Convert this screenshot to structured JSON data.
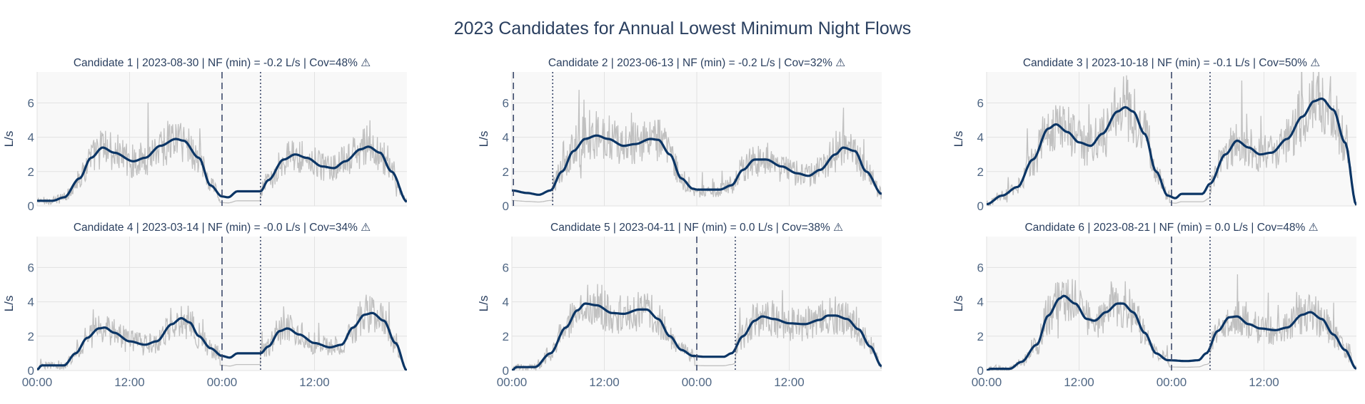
{
  "page": {
    "title": "2023 Candidates for Annual Lowest Minimum Night Flows"
  },
  "colors": {
    "plot_background": "#f8f8f8",
    "grid": "#e2e2e2",
    "raw_flow": "#c0c0c0",
    "smoothed_flow": "#0b3565",
    "markers": "#3c4a6b",
    "tick_text": "#506784",
    "title_text": "#2a3f5f"
  },
  "chart_data": [
    {
      "type": "line",
      "title": "Candidate 1 | 2023-08-30 | NF (min) = -0.2 L/s | Cov=48% ⚠",
      "ylabel": "L/s",
      "x_range_hours": [
        0,
        48
      ],
      "ylim": [
        0,
        7.8
      ],
      "x_ticks": [
        {
          "hour": 0,
          "label": "00:00"
        },
        {
          "hour": 12,
          "label": "12:00"
        },
        {
          "hour": 24,
          "label": "00:00"
        },
        {
          "hour": 36,
          "label": "12:00"
        }
      ],
      "y_ticks": [
        0,
        2,
        4,
        6
      ],
      "dashed_marker_hour": 24,
      "dotted_marker_hour": 29,
      "smoothed_points": [
        [
          0,
          0.3
        ],
        [
          2,
          0.3
        ],
        [
          3.5,
          0.5
        ],
        [
          5.5,
          1.6
        ],
        [
          7,
          2.8
        ],
        [
          8.5,
          3.4
        ],
        [
          10,
          3.1
        ],
        [
          12.5,
          2.6
        ],
        [
          14,
          2.8
        ],
        [
          16,
          3.5
        ],
        [
          18,
          3.9
        ],
        [
          19,
          3.8
        ],
        [
          21,
          2.8
        ],
        [
          22.5,
          1.2
        ],
        [
          24,
          0.55
        ],
        [
          24.8,
          0.5
        ],
        [
          26,
          0.85
        ],
        [
          29,
          0.85
        ],
        [
          30,
          1.5
        ],
        [
          32,
          2.7
        ],
        [
          33.5,
          3.0
        ],
        [
          35,
          2.8
        ],
        [
          37,
          2.3
        ],
        [
          38.5,
          2.2
        ],
        [
          40,
          2.6
        ],
        [
          42,
          3.3
        ],
        [
          43,
          3.45
        ],
        [
          44.5,
          3.1
        ],
        [
          46,
          2.0
        ],
        [
          48,
          0.25
        ]
      ]
    },
    {
      "type": "line",
      "title": "Candidate 2 | 2023-06-13 | NF (min) = -0.2 L/s | Cov=32% ⚠",
      "ylabel": "L/s",
      "x_range_hours": [
        0,
        48
      ],
      "ylim": [
        0,
        7.8
      ],
      "x_ticks": [
        {
          "hour": 0,
          "label": "00:00"
        },
        {
          "hour": 12,
          "label": "12:00"
        },
        {
          "hour": 24,
          "label": "00:00"
        },
        {
          "hour": 36,
          "label": "12:00"
        }
      ],
      "y_ticks": [
        0,
        2,
        4,
        6
      ],
      "dashed_marker_hour": 0.2,
      "dotted_marker_hour": 5.3,
      "smoothed_points": [
        [
          0,
          0.9
        ],
        [
          2,
          0.75
        ],
        [
          3.5,
          0.65
        ],
        [
          5,
          0.9
        ],
        [
          6.5,
          2.0
        ],
        [
          8,
          3.2
        ],
        [
          9.5,
          3.9
        ],
        [
          11,
          4.1
        ],
        [
          12.5,
          3.9
        ],
        [
          14.5,
          3.5
        ],
        [
          16,
          3.6
        ],
        [
          18,
          3.9
        ],
        [
          19,
          3.85
        ],
        [
          20.5,
          3.0
        ],
        [
          22,
          1.6
        ],
        [
          23.5,
          1.0
        ],
        [
          24,
          0.95
        ],
        [
          27,
          0.95
        ],
        [
          28.5,
          1.2
        ],
        [
          30,
          2.1
        ],
        [
          31.5,
          2.7
        ],
        [
          33,
          2.7
        ],
        [
          35,
          2.3
        ],
        [
          37,
          1.9
        ],
        [
          38.5,
          1.75
        ],
        [
          40,
          2.1
        ],
        [
          42,
          3.0
        ],
        [
          43,
          3.4
        ],
        [
          44.5,
          3.2
        ],
        [
          46,
          2.0
        ],
        [
          48,
          0.7
        ]
      ]
    },
    {
      "type": "line",
      "title": "Candidate 3 | 2023-10-18 | NF (min) = -0.1 L/s | Cov=50% ⚠",
      "ylabel": "L/s",
      "x_range_hours": [
        0,
        48
      ],
      "ylim": [
        0,
        7.8
      ],
      "x_ticks": [
        {
          "hour": 0,
          "label": "00:00"
        },
        {
          "hour": 12,
          "label": "12:00"
        },
        {
          "hour": 24,
          "label": "00:00"
        },
        {
          "hour": 36,
          "label": "12:00"
        }
      ],
      "y_ticks": [
        0,
        2,
        4,
        6
      ],
      "dashed_marker_hour": 24,
      "dotted_marker_hour": 29,
      "smoothed_points": [
        [
          0,
          0.1
        ],
        [
          2,
          0.6
        ],
        [
          4,
          1.1
        ],
        [
          6,
          2.7
        ],
        [
          8,
          4.5
        ],
        [
          9,
          4.75
        ],
        [
          10.5,
          4.3
        ],
        [
          12,
          3.7
        ],
        [
          13.5,
          3.5
        ],
        [
          15,
          4.2
        ],
        [
          17,
          5.5
        ],
        [
          18,
          5.75
        ],
        [
          19,
          5.5
        ],
        [
          20.5,
          4.2
        ],
        [
          22,
          2.0
        ],
        [
          23.5,
          0.6
        ],
        [
          24.5,
          0.45
        ],
        [
          25.3,
          0.7
        ],
        [
          28,
          0.7
        ],
        [
          29,
          1.3
        ],
        [
          31,
          3.0
        ],
        [
          32.5,
          3.8
        ],
        [
          34,
          3.4
        ],
        [
          35.5,
          3.0
        ],
        [
          37,
          3.1
        ],
        [
          39,
          3.9
        ],
        [
          41,
          5.2
        ],
        [
          42.5,
          6.1
        ],
        [
          43.5,
          6.25
        ],
        [
          45,
          5.6
        ],
        [
          46.5,
          3.7
        ],
        [
          48,
          0.05
        ]
      ]
    },
    {
      "type": "line",
      "title": "Candidate 4 | 2023-03-14 | NF (min) = -0.0 L/s | Cov=34% ⚠",
      "ylabel": "L/s",
      "x_range_hours": [
        0,
        48
      ],
      "ylim": [
        0,
        7.8
      ],
      "x_ticks": [
        {
          "hour": 0,
          "label": "00:00"
        },
        {
          "hour": 12,
          "label": "12:00"
        },
        {
          "hour": 24,
          "label": "00:00"
        },
        {
          "hour": 36,
          "label": "12:00"
        }
      ],
      "y_ticks": [
        0,
        2,
        4,
        6
      ],
      "dashed_marker_hour": 24,
      "dotted_marker_hour": 29,
      "smoothed_points": [
        [
          0,
          0.05
        ],
        [
          0.6,
          0.3
        ],
        [
          3.5,
          0.3
        ],
        [
          5,
          1.0
        ],
        [
          6.5,
          1.9
        ],
        [
          8,
          2.45
        ],
        [
          8.8,
          2.5
        ],
        [
          10,
          2.2
        ],
        [
          12,
          1.7
        ],
        [
          14,
          1.5
        ],
        [
          15.5,
          1.7
        ],
        [
          17.5,
          2.7
        ],
        [
          18.7,
          3.05
        ],
        [
          19.8,
          2.8
        ],
        [
          21,
          2.0
        ],
        [
          22.5,
          1.3
        ],
        [
          24,
          0.85
        ],
        [
          25,
          0.75
        ],
        [
          26,
          1.0
        ],
        [
          29,
          1.0
        ],
        [
          30,
          1.4
        ],
        [
          31.5,
          2.3
        ],
        [
          32.5,
          2.45
        ],
        [
          34,
          2.1
        ],
        [
          36,
          1.6
        ],
        [
          38,
          1.35
        ],
        [
          39.5,
          1.5
        ],
        [
          41,
          2.5
        ],
        [
          42.5,
          3.25
        ],
        [
          43.5,
          3.35
        ],
        [
          45,
          2.9
        ],
        [
          46.5,
          1.6
        ],
        [
          48,
          0
        ]
      ]
    },
    {
      "type": "line",
      "title": "Candidate 5 | 2023-04-11 | NF (min) = 0.0 L/s | Cov=38% ⚠",
      "ylabel": "L/s",
      "x_range_hours": [
        0,
        48
      ],
      "ylim": [
        0,
        7.8
      ],
      "x_ticks": [
        {
          "hour": 0,
          "label": "00:00"
        },
        {
          "hour": 12,
          "label": "12:00"
        },
        {
          "hour": 24,
          "label": "00:00"
        },
        {
          "hour": 36,
          "label": "12:00"
        }
      ],
      "y_ticks": [
        0,
        2,
        4,
        6
      ],
      "dashed_marker_hour": 24,
      "dotted_marker_hour": 29,
      "smoothed_points": [
        [
          0,
          0
        ],
        [
          0.6,
          0.2
        ],
        [
          3,
          0.2
        ],
        [
          5,
          1.0
        ],
        [
          7,
          2.5
        ],
        [
          8.5,
          3.5
        ],
        [
          9.5,
          3.9
        ],
        [
          11,
          3.8
        ],
        [
          13,
          3.35
        ],
        [
          14.5,
          3.3
        ],
        [
          16.5,
          3.55
        ],
        [
          17.5,
          3.55
        ],
        [
          19,
          3.0
        ],
        [
          20.5,
          2.0
        ],
        [
          22,
          1.2
        ],
        [
          23.5,
          0.85
        ],
        [
          25,
          0.8
        ],
        [
          27.5,
          0.8
        ],
        [
          28.5,
          1.0
        ],
        [
          30,
          2.0
        ],
        [
          31.5,
          2.9
        ],
        [
          32.5,
          3.15
        ],
        [
          34,
          3.0
        ],
        [
          36,
          2.75
        ],
        [
          38,
          2.7
        ],
        [
          40,
          2.95
        ],
        [
          41,
          3.2
        ],
        [
          42,
          3.2
        ],
        [
          43.5,
          3.0
        ],
        [
          45,
          2.4
        ],
        [
          46.5,
          1.4
        ],
        [
          48,
          0.25
        ]
      ]
    },
    {
      "type": "line",
      "title": "Candidate 6 | 2023-08-21 | NF (min) = 0.0 L/s | Cov=48% ⚠",
      "ylabel": "L/s",
      "x_range_hours": [
        0,
        48
      ],
      "ylim": [
        0,
        7.8
      ],
      "x_ticks": [
        {
          "hour": 0,
          "label": "00:00"
        },
        {
          "hour": 12,
          "label": "12:00"
        },
        {
          "hour": 24,
          "label": "00:00"
        },
        {
          "hour": 36,
          "label": "12:00"
        }
      ],
      "y_ticks": [
        0,
        2,
        4,
        6
      ],
      "dashed_marker_hour": 24,
      "dotted_marker_hour": 29,
      "smoothed_points": [
        [
          0,
          0
        ],
        [
          0.5,
          0.1
        ],
        [
          3,
          0.1
        ],
        [
          4.5,
          0.5
        ],
        [
          6.5,
          1.5
        ],
        [
          8,
          3.2
        ],
        [
          9.5,
          4.2
        ],
        [
          10,
          4.35
        ],
        [
          11.5,
          3.9
        ],
        [
          13,
          3.0
        ],
        [
          14,
          2.9
        ],
        [
          15.5,
          3.4
        ],
        [
          17,
          3.9
        ],
        [
          17.7,
          3.9
        ],
        [
          19,
          3.4
        ],
        [
          20.5,
          2.2
        ],
        [
          22,
          1.0
        ],
        [
          23.5,
          0.6
        ],
        [
          26,
          0.55
        ],
        [
          27.5,
          0.6
        ],
        [
          28.5,
          1.0
        ],
        [
          30,
          2.3
        ],
        [
          31.5,
          3.1
        ],
        [
          32.5,
          3.15
        ],
        [
          34,
          2.7
        ],
        [
          35.5,
          2.45
        ],
        [
          37.5,
          2.35
        ],
        [
          39,
          2.5
        ],
        [
          41,
          3.25
        ],
        [
          42,
          3.4
        ],
        [
          43.5,
          3.0
        ],
        [
          45,
          2.1
        ],
        [
          46.5,
          1.2
        ],
        [
          48,
          0.1
        ]
      ]
    }
  ]
}
